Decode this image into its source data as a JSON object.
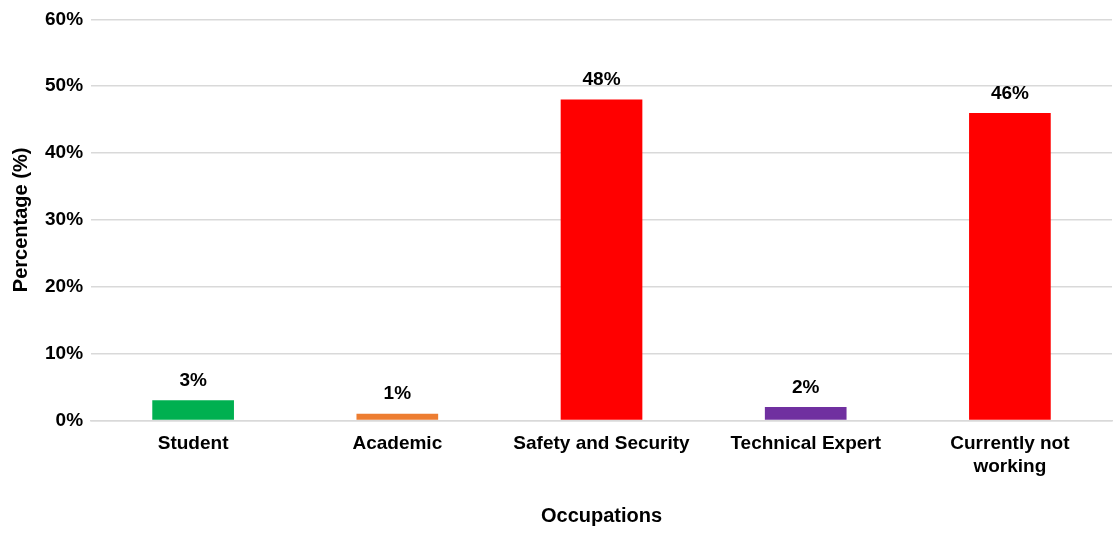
{
  "chart_data": {
    "type": "bar",
    "xlabel": "Occupations",
    "ylabel": "Percentage (%)",
    "categories": [
      "Student",
      "Academic",
      "Safety and Security",
      "Technical Expert",
      "Currently not working"
    ],
    "values": [
      3,
      1,
      48,
      2,
      46
    ],
    "colors": [
      "#00b050",
      "#ed7d31",
      "#ff0000",
      "#7030a0",
      "#ff0000"
    ],
    "value_labels": [
      "3%",
      "1%",
      "48%",
      "2%",
      "46%"
    ],
    "ylim": [
      0,
      60
    ],
    "yticks": [
      {
        "value": 0,
        "label": "0%"
      },
      {
        "value": 10,
        "label": "10%"
      },
      {
        "value": 20,
        "label": "20%"
      },
      {
        "value": 30,
        "label": "30%"
      },
      {
        "value": 40,
        "label": "40%"
      },
      {
        "value": 50,
        "label": "50%"
      },
      {
        "value": 60,
        "label": "60%"
      }
    ],
    "grid": "y"
  }
}
